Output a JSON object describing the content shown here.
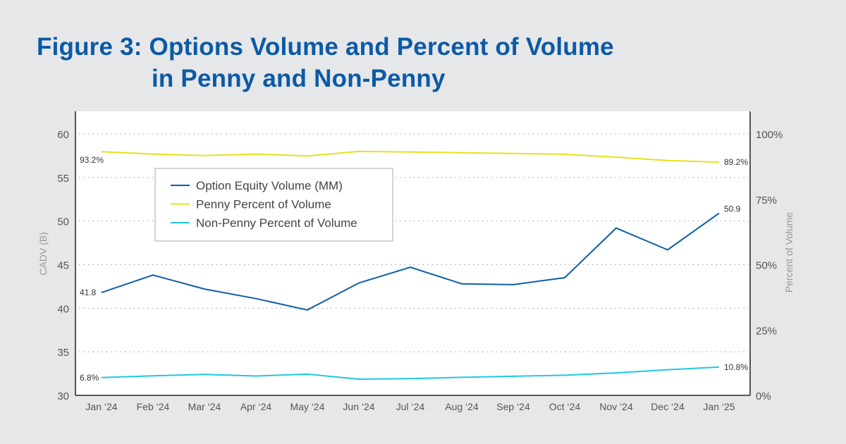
{
  "title": {
    "line1": "Figure 3: Options Volume and Percent of Volume",
    "line2": "in Penny and Non-Penny"
  },
  "chart_data": {
    "type": "line",
    "title": "Figure 3: Options Volume and Percent of Volume in Penny and Non-Penny",
    "categories": [
      "Jan ‘24",
      "Feb ‘24",
      "Mar ‘24",
      "Apr ‘24",
      "May ‘24",
      "Jun ‘24",
      "Jul ‘24",
      "Aug ‘24",
      "Sep ‘24",
      "Oct ‘24",
      "Nov ‘24",
      "Dec ‘24",
      "Jan ‘25"
    ],
    "ylabel_left": "CADV (B)",
    "ylabel_right": "Percent of Volume",
    "ylim_left": [
      30,
      60
    ],
    "yticks_left": [
      "30",
      "35",
      "40",
      "45",
      "50",
      "55",
      "60"
    ],
    "ylim_right": [
      0,
      100
    ],
    "yticks_right": [
      "0%",
      "25%",
      "50%",
      "75%",
      "100%"
    ],
    "grid": "horizontal-dotted",
    "legend_position": "upper-left-inside",
    "series": [
      {
        "name": "Option Equity Volume (MM)",
        "axis": "left",
        "color": "#0d5ea8",
        "values": [
          41.8,
          43.8,
          42.2,
          41.1,
          39.8,
          42.9,
          44.7,
          42.8,
          42.7,
          43.5,
          49.2,
          46.7,
          50.9
        ],
        "labels": {
          "first": "41.8",
          "last": "50.9"
        }
      },
      {
        "name": "Penny Percent of Volume",
        "axis": "right",
        "color": "#e4e21c",
        "values": [
          93.2,
          92.3,
          91.7,
          92.3,
          91.6,
          93.3,
          93.1,
          92.8,
          92.5,
          92.2,
          91.1,
          89.8,
          89.2
        ],
        "labels": {
          "first": "93.2%",
          "last": "89.2%"
        }
      },
      {
        "name": "Non-Penny Percent of Volume",
        "axis": "right",
        "color": "#1ec8e0",
        "values": [
          6.8,
          7.5,
          8.0,
          7.4,
          8.1,
          6.2,
          6.4,
          6.9,
          7.3,
          7.7,
          8.6,
          9.8,
          10.8
        ],
        "labels": {
          "first": "6.8%",
          "last": "10.8%"
        }
      }
    ]
  }
}
